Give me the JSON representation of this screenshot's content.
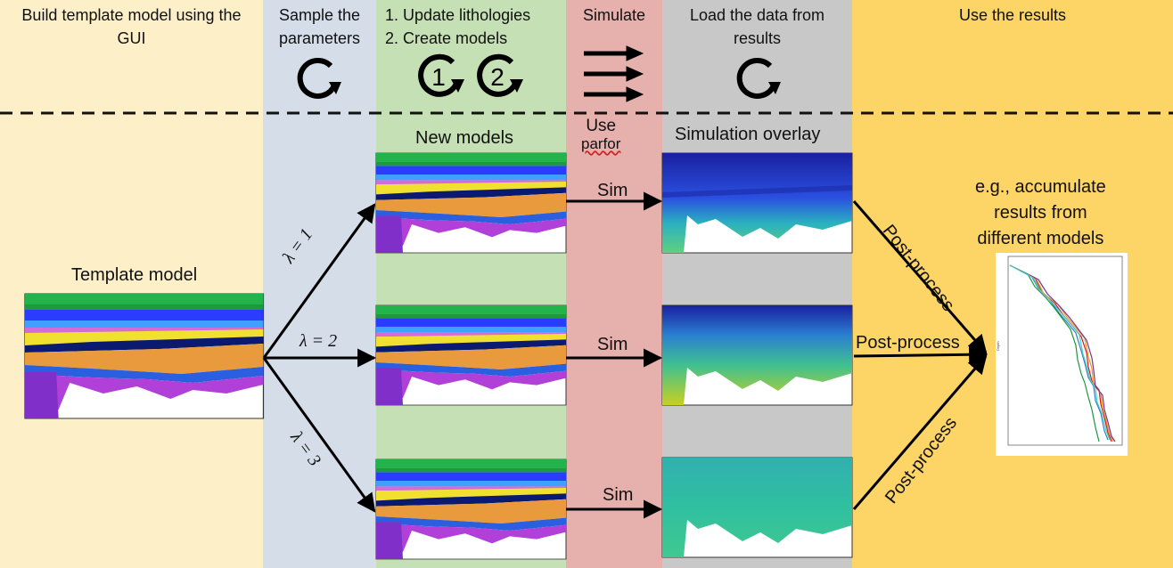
{
  "columns": [
    {
      "id": "build",
      "header": "Build template model using the GUI",
      "color": "#fdf0c8"
    },
    {
      "id": "sample",
      "header": "Sample the parameters",
      "color": "#d4dde8"
    },
    {
      "id": "update",
      "header_lines": [
        "1. Update lithologies",
        "2. Create models"
      ],
      "color": "#c5e0b4"
    },
    {
      "id": "simulate",
      "header": "Simulate",
      "color": "#e6b0ad"
    },
    {
      "id": "load",
      "header": "Load the data from results",
      "color": "#c8c8c8"
    },
    {
      "id": "use",
      "header": "Use the results",
      "color": "#fdd466"
    }
  ],
  "icons": {
    "cycle_sample": "cycle-arrow-icon",
    "cycle_one_label": "1",
    "cycle_two_label": "2",
    "triple_arrow": "triple-right-arrow-icon",
    "cycle_load": "cycle-arrow-icon"
  },
  "labels": {
    "template_model": "Template model",
    "new_models": "New models",
    "use_parfor_1": "Use",
    "use_parfor_2": "parfor",
    "simulation_overlay": "Simulation overlay",
    "lambda_1": "λ = 1",
    "lambda_2": "λ = 2",
    "lambda_3": "λ = 3",
    "sim_1": "Sim",
    "sim_2": "Sim",
    "sim_3": "Sim",
    "post_process_1": "Post-process",
    "post_process_2": "Post-process",
    "post_process_3": "Post-process",
    "result_line_1": "e.g., accumulate",
    "result_line_2": "results from",
    "result_line_3": "different models"
  },
  "colors": {
    "strata": [
      "#22b34a",
      "#2a3cff",
      "#3fa0ff",
      "#d36bd8",
      "#e89a3c",
      "#d8a02a",
      "#f0e030",
      "#0a1a70",
      "#e89a3c",
      "#2a60e0",
      "#b040d8",
      "#8030c8"
    ],
    "sim_dark": "#1a2aa8",
    "sim_mid": "#20b0b0",
    "sim_light": "#a8d040"
  }
}
